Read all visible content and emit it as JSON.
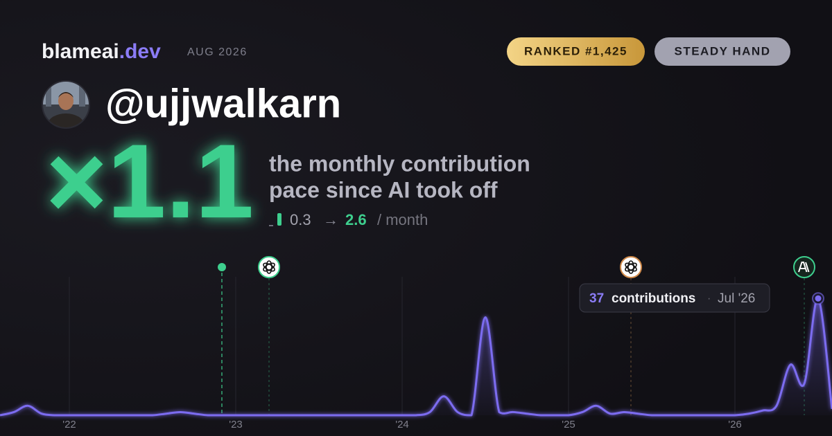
{
  "header": {
    "brand": "blameai",
    "brand_tld": ".dev",
    "date": "AUG 2026",
    "badges": [
      "RANKED #1,425",
      "STEADY HAND"
    ],
    "username": "@ujjwalkarn"
  },
  "headline": {
    "multiplier": "×1.1",
    "caption_lines": [
      "the monthly contribution",
      "pace since AI took off"
    ],
    "from": 0.3,
    "arrow": "→",
    "to": 2.6,
    "unit": "/ month"
  },
  "tooltip": {
    "label": "contributions",
    "separator": "·",
    "date": "Jul '26"
  },
  "chart_data": {
    "type": "area",
    "color": "#7c6cf0",
    "categories": [
      null,
      null,
      null,
      null,
      null,
      "'22",
      null,
      null,
      null,
      null,
      null,
      null,
      null,
      null,
      null,
      null,
      null,
      "'23",
      null,
      null,
      null,
      null,
      null,
      null,
      null,
      null,
      null,
      null,
      null,
      "'24",
      null,
      null,
      null,
      null,
      null,
      null,
      null,
      null,
      null,
      null,
      null,
      "'25",
      null,
      null,
      null,
      null,
      null,
      null,
      null,
      null,
      null,
      null,
      null,
      "'26",
      null,
      null,
      null,
      null,
      null,
      null,
      null
    ],
    "values": [
      0,
      1,
      3,
      0.5,
      0,
      0,
      0,
      0,
      0,
      0,
      0,
      0,
      0.5,
      1,
      0.5,
      0,
      0,
      0,
      0,
      0,
      0,
      0,
      0,
      0,
      0,
      0,
      0,
      0,
      0,
      0,
      0,
      1,
      6,
      1,
      0,
      31,
      1,
      1,
      0.5,
      0,
      0,
      0,
      1,
      3,
      0.5,
      1,
      0.5,
      0,
      0,
      0,
      0,
      0,
      0,
      0,
      0.5,
      1.5,
      3,
      16,
      10,
      37,
      2
    ],
    "ylim": [
      0,
      48
    ],
    "highlight": 59
  }
}
